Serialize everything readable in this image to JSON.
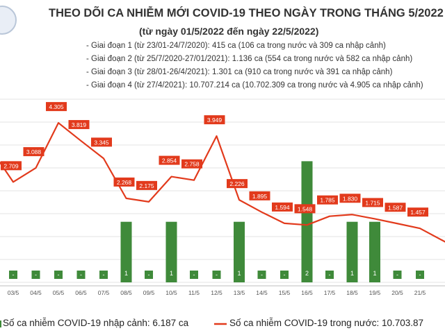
{
  "chart_data": {
    "type": "bar+line",
    "title": "THEO DÕI CA NHIỄM MỚI COVID-19 THEO NGÀY TRONG THÁNG 5/2022",
    "subtitle": "(từ ngày 01/5/2022 đến ngày 22/5/2022)",
    "notes": [
      "- Giai đoạn 1 (từ 23/01-24/7/2020): 415 ca (106 ca trong nước và 309 ca nhập cảnh)",
      "- Giai đoạn 2 (từ 25/7/2020-27/01/2021): 1.136 ca (554 ca trong nước và 582 ca nhập cảnh)",
      "- Giai đoạn 3 (từ 28/01-26/4/2021): 1.301 ca (910 ca trong nước và 391 ca nhập cảnh)",
      "- Giai đoạn 4 (từ 27/4/2021): 10.707.214 ca (10.702.309 ca trong nước và 4.905 ca nhập cảnh)"
    ],
    "categories": [
      "03/5",
      "04/5",
      "05/5",
      "06/5",
      "07/5",
      "08/5",
      "09/5",
      "10/5",
      "11/5",
      "12/5",
      "13/5",
      "14/5",
      "15/5",
      "16/5",
      "17/5",
      "18/5",
      "19/5",
      "20/5",
      "21/5"
    ],
    "series": [
      {
        "name": "Số ca nhiễm COVID-19 nhập cảnh: 6.187 ca",
        "kind": "bar",
        "color": "#3f8a3a",
        "values": [
          0,
          0,
          0,
          0,
          0,
          1,
          0,
          1,
          0,
          0,
          1,
          0,
          0,
          2,
          0,
          1,
          1,
          0,
          0
        ],
        "labels": [
          "-",
          "-",
          "-",
          "-",
          "-",
          "1",
          "-",
          "1",
          "-",
          "-",
          "1",
          "-",
          "-",
          "2",
          "-",
          "1",
          "1",
          "-",
          "-"
        ]
      },
      {
        "name": "Số ca nhiễm COVID-19 trong nước: 10.703.87",
        "kind": "line",
        "color": "#e23a1c",
        "values": [
          2709,
          3088,
          4305,
          3819,
          3345,
          2268,
          2175,
          2854,
          2758,
          3949,
          2226,
          1895,
          1594,
          1548,
          1785,
          1830,
          1715,
          1587,
          1457
        ],
        "labels": [
          "2.709",
          "3.088",
          "4.305",
          "3.819",
          "3.345",
          "2.268",
          "2.175",
          "2.854",
          "2.758",
          "3.949",
          "2.226",
          "1.895",
          "1.594",
          "1.548",
          "1.785",
          "1.830",
          "1.715",
          "1.587",
          "1.457"
        ]
      }
    ],
    "ylim": [
      0,
      5000
    ],
    "y2lim": [
      0,
      2.6
    ],
    "grid": true,
    "legend": "bottom"
  }
}
